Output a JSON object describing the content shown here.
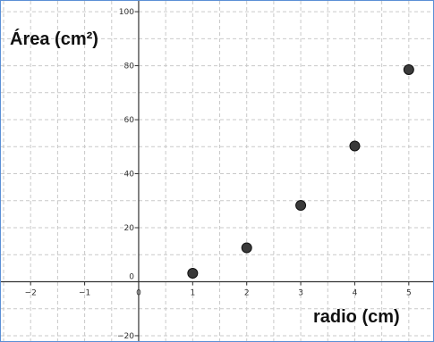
{
  "chart_data": {
    "type": "scatter",
    "xlabel": "radio (cm)",
    "ylabel": "Área (cm²)",
    "x_ticks": [
      -2,
      -1,
      0,
      1,
      2,
      3,
      4,
      5
    ],
    "y_ticks": [
      -20,
      0,
      20,
      40,
      60,
      80,
      100
    ],
    "xlim": [
      -2.55,
      5.45
    ],
    "ylim": [
      -22,
      104
    ],
    "grid": true,
    "grid_style": "dashed",
    "point_color": "#3a3a3a",
    "series": [
      {
        "x": [
          1,
          2,
          3,
          4,
          5
        ],
        "y": [
          3.14,
          12.57,
          28.27,
          50.27,
          78.54
        ]
      }
    ]
  }
}
